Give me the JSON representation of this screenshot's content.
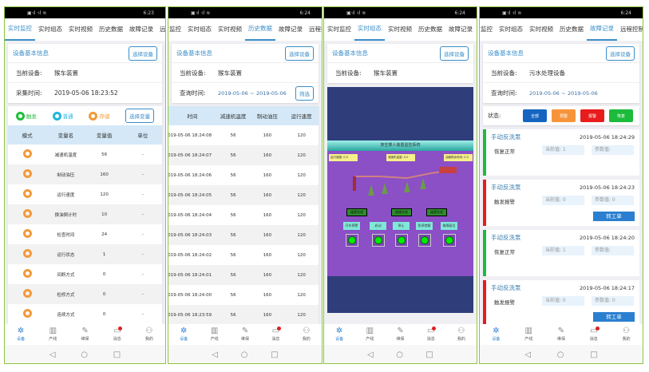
{
  "status_bar": {
    "signal": "▣ᐧıl ᐧıl ≋",
    "times": [
      "6:23",
      "6:24",
      "6:24",
      "6:24"
    ]
  },
  "tabs": [
    "实时监控",
    "实时组态",
    "实时视频",
    "历史数据",
    "故障记录",
    "远程控制"
  ],
  "common": {
    "info_title": "设备基本信息",
    "select_device": "选择设备",
    "current_device_label": "当前设备:",
    "query_time_label": "查询时间:",
    "filter": "筛选"
  },
  "bottom_nav": [
    {
      "label": "设备",
      "icon": "gear-icon",
      "glyph": "✲"
    },
    {
      "label": "产线",
      "icon": "chart-icon",
      "glyph": "▥"
    },
    {
      "label": "维保",
      "icon": "wrench-icon",
      "glyph": "✎"
    },
    {
      "label": "消息",
      "icon": "message-icon",
      "glyph": "▭"
    },
    {
      "label": "我的",
      "icon": "user-icon",
      "glyph": "⚇"
    }
  ],
  "system_nav": [
    "◁",
    "○",
    "□"
  ],
  "panel1": {
    "device": "猴车装置",
    "collect_label": "采集时间:",
    "collect_time": "2019-05-06 18:23:52",
    "legend": [
      {
        "label": "触发",
        "color": "#1fbf3a"
      },
      {
        "label": "普通",
        "color": "#1cb6e0"
      },
      {
        "label": "存储",
        "color": "#f39a3a"
      }
    ],
    "select_var": "选择变量",
    "columns": [
      "模式",
      "变量名",
      "变量值",
      "单位"
    ],
    "rows": [
      [
        "减速机温度",
        "56",
        "-"
      ],
      [
        "制动油压",
        "160",
        "-"
      ],
      [
        "运行速度",
        "120",
        "-"
      ],
      [
        "换油倒计时",
        "10",
        "-"
      ],
      [
        "检查时间",
        "24",
        "-"
      ],
      [
        "运行状态",
        "1",
        "-"
      ],
      [
        "间断方式",
        "0",
        "-"
      ],
      [
        "检修方式",
        "0",
        "-"
      ],
      [
        "连续方式",
        "0",
        "-"
      ]
    ]
  },
  "panel2": {
    "device": "猴车装置",
    "date_from": "2019-05-06",
    "date_sep": "~",
    "date_to": "2019-05-06",
    "columns": [
      "时间",
      "减速机温度",
      "制动油压",
      "运行速度"
    ],
    "rows": [
      [
        "2019-05-06 18:24:08",
        "56",
        "160",
        "120"
      ],
      [
        "2019-05-06 18:24:07",
        "56",
        "160",
        "120"
      ],
      [
        "2019-05-06 18:24:06",
        "56",
        "160",
        "120"
      ],
      [
        "2019-05-06 18:24:05",
        "56",
        "160",
        "120"
      ],
      [
        "2019-05-06 18:24:04",
        "56",
        "160",
        "120"
      ],
      [
        "2019-05-06 18:24:03",
        "56",
        "160",
        "120"
      ],
      [
        "2019-05-06 18:24:02",
        "56",
        "160",
        "120"
      ],
      [
        "2019-05-06 18:24:01",
        "56",
        "160",
        "120"
      ],
      [
        "2019-05-06 18:24:00",
        "56",
        "160",
        "120"
      ],
      [
        "2019-05-06 18:23:59",
        "56",
        "160",
        "120"
      ]
    ]
  },
  "panel3": {
    "device": "猴车装置",
    "scada_title": "架空乘人装置监控系统",
    "readouts": [
      "运行速度: 0.0",
      "减速机温度: 0.0",
      "油箱剩余时间: 0.0"
    ],
    "modes": [
      "连续方式",
      "连续方式",
      "连续方式"
    ],
    "controls": [
      "开车预警",
      "启动",
      "停止",
      "急停禁解",
      "故障复位"
    ]
  },
  "panel4": {
    "device": "污水处理设备",
    "date_from": "2019-05-06",
    "date_sep": "~",
    "date_to": "2019-05-06",
    "status_label": "状态:",
    "filters": [
      {
        "label": "全部",
        "color": "#1565c0"
      },
      {
        "label": "预警",
        "color": "#f7943a"
      },
      {
        "label": "报警",
        "color": "#e81c1c"
      },
      {
        "label": "恢复",
        "color": "#1dbb3c"
      }
    ],
    "transfer": "转工单",
    "records": [
      {
        "name": "手动反洗泵",
        "time": "2019-05-06 18:24:29",
        "state": "恢复正常",
        "current": "当前值: 1",
        "param": "参数值:",
        "color": "#1dbb3c",
        "ticket": false
      },
      {
        "name": "手动反洗泵",
        "time": "2019-05-06 18:24:23",
        "state": "触发报警",
        "current": "当前值: 0",
        "param": "参数值: 0",
        "color": "#e81c1c",
        "ticket": true
      },
      {
        "name": "手动反洗泵",
        "time": "2019-05-06 18:24:20",
        "state": "恢复正常",
        "current": "当前值: 1",
        "param": "参数值:",
        "color": "#1dbb3c",
        "ticket": false
      },
      {
        "name": "手动反洗泵",
        "time": "2019-05-06 18:24:17",
        "state": "触发报警",
        "current": "当前值: 0",
        "param": "参数值: 0",
        "color": "#e81c1c",
        "ticket": true
      }
    ]
  }
}
